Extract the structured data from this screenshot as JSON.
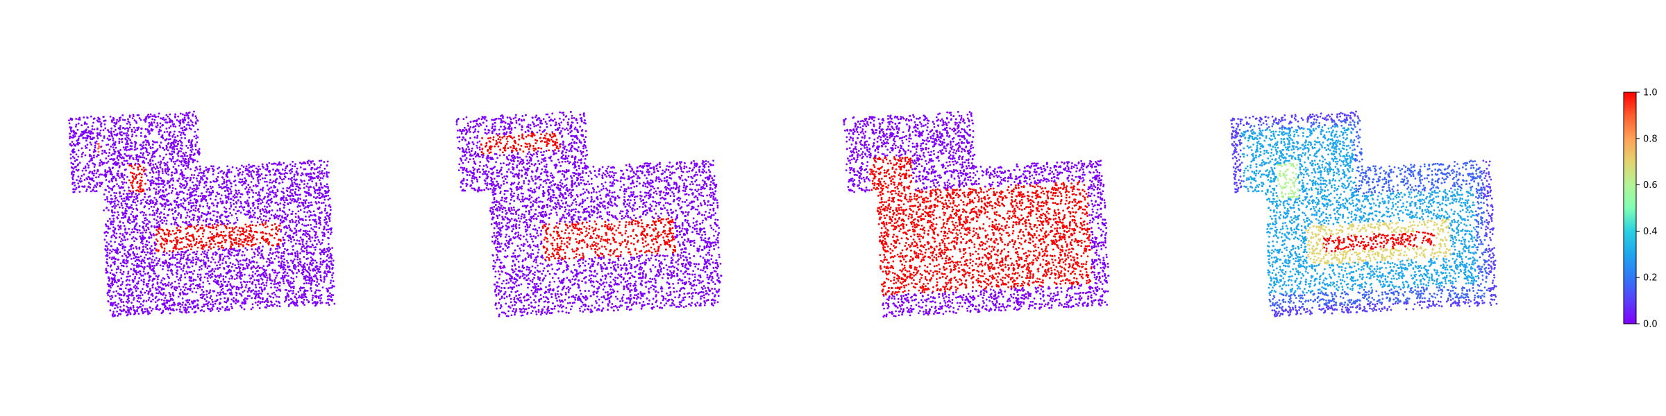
{
  "chart_data": {
    "type": "scatter",
    "title": "",
    "panel_count": 4,
    "point_cloud": "floor-plan outline (upper-left wing joined to a lower-right rectangle), top-down view",
    "colormap": "rainbow",
    "axes_visible": false,
    "legend": "none",
    "colorbar": {
      "placement": "right",
      "range": [
        0.0,
        1.0
      ],
      "ticks": [
        0.0,
        0.2,
        0.4,
        0.6,
        0.8,
        1.0
      ],
      "tick_labels": [
        "0.0",
        "0.2",
        "0.4",
        "0.6",
        "0.8",
        "1.0"
      ]
    },
    "panels": [
      {
        "index": 1,
        "background_value": 0.0,
        "highlighted_regions": [
          {
            "shape": "band in the lower rectangle",
            "value": 1.0
          },
          {
            "shape": "short patch in the left wing",
            "value": 1.0
          },
          {
            "shape": "thin strip at the top of the left wing",
            "value": 1.0
          },
          {
            "shape": "small strip at the left edge of the left wing",
            "value": 0.9
          }
        ]
      },
      {
        "index": 2,
        "background_value": 0.0,
        "highlighted_regions": [
          {
            "shape": "band near the top of the left wing",
            "value": 1.0
          },
          {
            "shape": "band in the lower rectangle",
            "value": 1.0
          }
        ]
      },
      {
        "index": 3,
        "background_value": 0.0,
        "highlighted_regions": [
          {
            "shape": "large L-shaped interior region",
            "value": 1.0
          }
        ]
      },
      {
        "index": 4,
        "background_value": 0.0,
        "gradient": "values rise from about 0.0 at the outer edge through 0.2-0.4 towards the interior, reaching 0.6-0.8 around the central band and 1.0 at the central band",
        "highlighted_regions": [
          {
            "shape": "central band in the lower rectangle",
            "value": 1.0
          },
          {
            "shape": "ring around the central band",
            "value": 0.7
          },
          {
            "shape": "patch in the left wing",
            "value": 0.6
          },
          {
            "shape": "interior ring",
            "value": 0.3
          },
          {
            "shape": "outer border",
            "value": 0.1
          }
        ]
      }
    ]
  }
}
